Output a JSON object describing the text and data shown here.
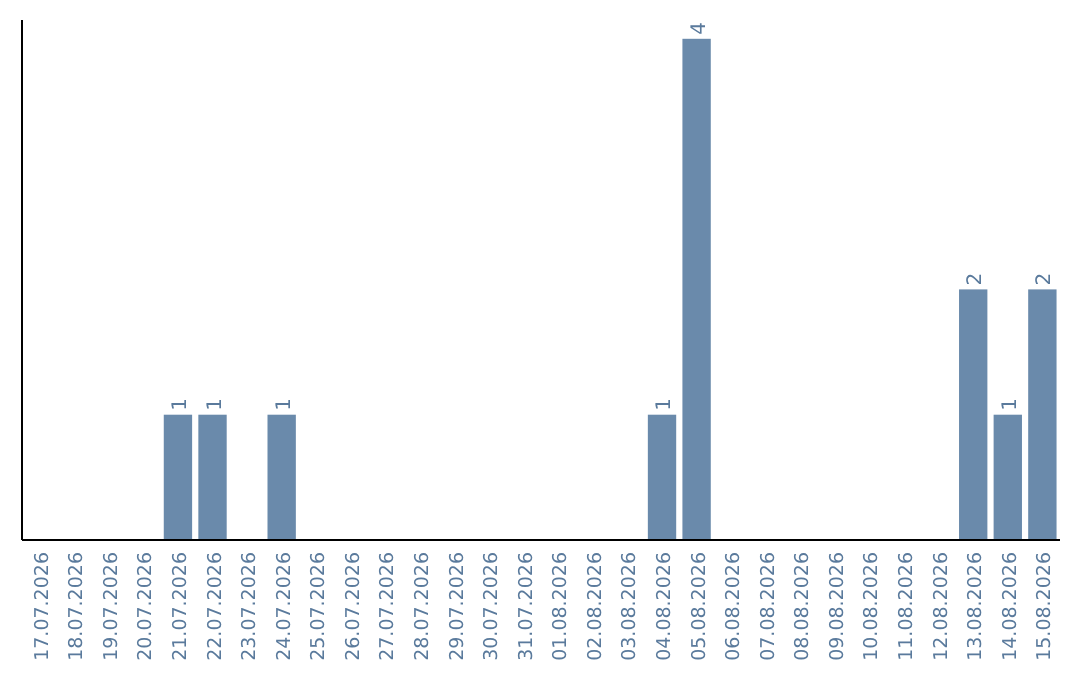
{
  "chart_data": {
    "type": "bar",
    "categories": [
      "17.07.2026",
      "18.07.2026",
      "19.07.2026",
      "20.07.2026",
      "21.07.2026",
      "22.07.2026",
      "23.07.2026",
      "24.07.2026",
      "25.07.2026",
      "26.07.2026",
      "27.07.2026",
      "28.07.2026",
      "29.07.2026",
      "30.07.2026",
      "31.07.2026",
      "01.08.2026",
      "02.08.2026",
      "03.08.2026",
      "04.08.2026",
      "05.08.2026",
      "06.08.2026",
      "07.08.2026",
      "08.08.2026",
      "09.08.2026",
      "10.08.2026",
      "11.08.2026",
      "12.08.2026",
      "13.08.2026",
      "14.08.2026",
      "15.08.2026"
    ],
    "values": [
      0,
      0,
      0,
      0,
      1,
      1,
      0,
      1,
      0,
      0,
      0,
      0,
      0,
      0,
      0,
      0,
      0,
      0,
      1,
      4,
      0,
      0,
      0,
      0,
      0,
      0,
      0,
      2,
      1,
      2
    ],
    "value_labels": [
      null,
      null,
      null,
      null,
      "1",
      "1",
      null,
      "1",
      null,
      null,
      null,
      null,
      null,
      null,
      null,
      null,
      null,
      null,
      "1",
      "4",
      null,
      null,
      null,
      null,
      null,
      null,
      null,
      "2",
      "1",
      "2"
    ],
    "color": "#6a8aab",
    "ylim": [
      0,
      4.15
    ],
    "tick_labels": "x"
  }
}
